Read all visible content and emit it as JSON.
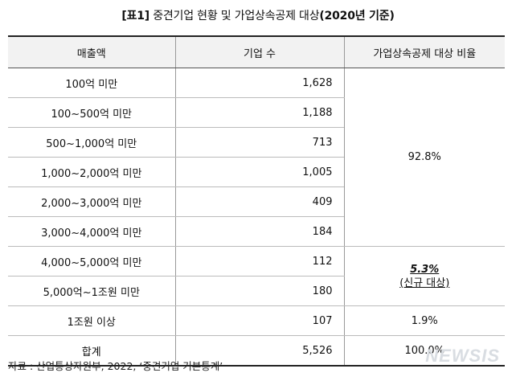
{
  "title": {
    "prefix": "[표1]",
    "main": " 중견기업 현황 및 가업상속공제 대상",
    "suffix": "(2020년 기준)"
  },
  "table": {
    "headers": [
      "매출액",
      "기업 수",
      "가업상속공제 대상 비율"
    ],
    "rows": [
      {
        "revenue": "100억 미만",
        "count": "1,628"
      },
      {
        "revenue": "100~500억 미만",
        "count": "1,188"
      },
      {
        "revenue": "500~1,000억 미만",
        "count": "713"
      },
      {
        "revenue": "1,000~2,000억 미만",
        "count": "1,005"
      },
      {
        "revenue": "2,000~3,000억 미만",
        "count": "409"
      },
      {
        "revenue": "3,000~4,000억 미만",
        "count": "184"
      },
      {
        "revenue": "4,000~5,000억 미만",
        "count": "112"
      },
      {
        "revenue": "5,000억~1조원 미만",
        "count": "180"
      },
      {
        "revenue": "1조원 이상",
        "count": "107"
      },
      {
        "revenue": "합계",
        "count": "5,526"
      }
    ],
    "ratios": {
      "under_4000": "92.8%",
      "new_pct": "5.3%",
      "new_note": "(신규 대상)",
      "over_1jo": "1.9%",
      "total": "100.0%"
    }
  },
  "source": "자료 : 산업통상자원부, 2022, ‘중견기업 기본통계’",
  "watermark": "NEWSIS"
}
